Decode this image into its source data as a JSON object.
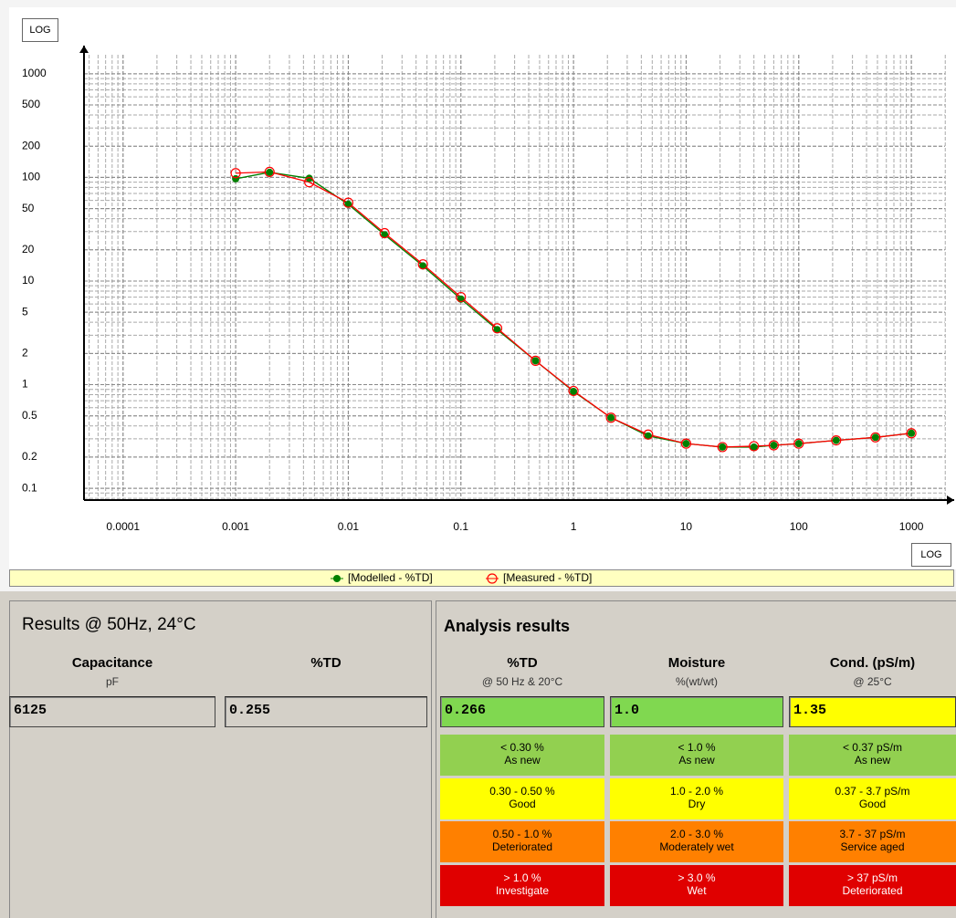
{
  "chart_data": {
    "type": "line",
    "log_x": true,
    "log_y": true,
    "grid": true,
    "minor_grid": true,
    "x": [
      0.001,
      0.002,
      0.0045,
      0.01,
      0.021,
      0.046,
      0.1,
      0.21,
      0.46,
      1,
      2.15,
      4.6,
      10,
      21,
      40,
      60,
      100,
      215,
      480,
      1000
    ],
    "series": [
      {
        "name": "[Modelled - %TD]",
        "color": "#008000",
        "marker": "filled",
        "values": [
          97,
          112,
          98,
          55,
          28,
          14,
          6.7,
          3.4,
          1.7,
          0.86,
          0.48,
          0.32,
          0.27,
          0.25,
          0.25,
          0.26,
          0.27,
          0.29,
          0.31,
          0.34
        ]
      },
      {
        "name": "[Measured - %TD]",
        "color": "#ff0000",
        "marker": "open",
        "values": [
          110,
          113,
          90,
          57,
          29,
          14.5,
          7,
          3.5,
          1.7,
          0.87,
          0.48,
          0.33,
          0.27,
          0.25,
          0.255,
          0.26,
          0.27,
          0.29,
          0.31,
          0.34
        ]
      }
    ],
    "xlim": [
      4.5e-05,
      2400
    ],
    "ylim": [
      0.077,
      1870
    ],
    "xticks": [
      0.0001,
      0.001,
      0.01,
      0.1,
      1,
      10,
      100,
      1000
    ],
    "yticks": [
      0.1,
      0.2,
      0.5,
      1,
      2,
      5,
      10,
      20,
      50,
      100,
      200,
      500,
      1000
    ],
    "y_scale_button": "LOG",
    "x_scale_button": "LOG"
  },
  "results": {
    "title": "Results @ 50Hz, 24°C",
    "columns": [
      {
        "name": "Capacitance",
        "unit": "pF",
        "value": "6125"
      },
      {
        "name": "%TD",
        "value": "0.255"
      }
    ]
  },
  "analysis": {
    "title": "Analysis results",
    "columns": [
      {
        "name": "%TD",
        "unit": "@ 50 Hz & 20°C",
        "value": "0.266",
        "color": "#80d850"
      },
      {
        "name": "Moisture",
        "unit": "%(wt/wt)",
        "value": "1.0",
        "color": "#80d850"
      },
      {
        "name": "Cond. (pS/m)",
        "unit": "@ 25°C",
        "value": "1.35",
        "color": "#ffff00"
      }
    ],
    "rows": [
      {
        "color": "#92d050",
        "text_color": "#000000",
        "cells": [
          {
            "range": "< 0.30 %",
            "label": "As new"
          },
          {
            "range": "< 1.0 %",
            "label": "As new"
          },
          {
            "range": "< 0.37 pS/m",
            "label": "As new"
          }
        ]
      },
      {
        "color": "#ffff00",
        "text_color": "#000000",
        "cells": [
          {
            "range": "0.30 - 0.50 %",
            "label": "Good"
          },
          {
            "range": "1.0 - 2.0 %",
            "label": "Dry"
          },
          {
            "range": "0.37 - 3.7 pS/m",
            "label": "Good"
          }
        ]
      },
      {
        "color": "#ff8000",
        "text_color": "#000000",
        "cells": [
          {
            "range": "0.50 - 1.0 %",
            "label": "Deteriorated"
          },
          {
            "range": "2.0 - 3.0 %",
            "label": "Moderately wet"
          },
          {
            "range": "3.7 - 37 pS/m",
            "label": "Service aged"
          }
        ]
      },
      {
        "color": "#e00000",
        "text_color": "#ffffff",
        "cells": [
          {
            "range": "> 1.0 %",
            "label": "Investigate"
          },
          {
            "range": "> 3.0 %",
            "label": "Wet"
          },
          {
            "range": "> 37 pS/m",
            "label": "Deteriorated"
          }
        ]
      }
    ]
  }
}
